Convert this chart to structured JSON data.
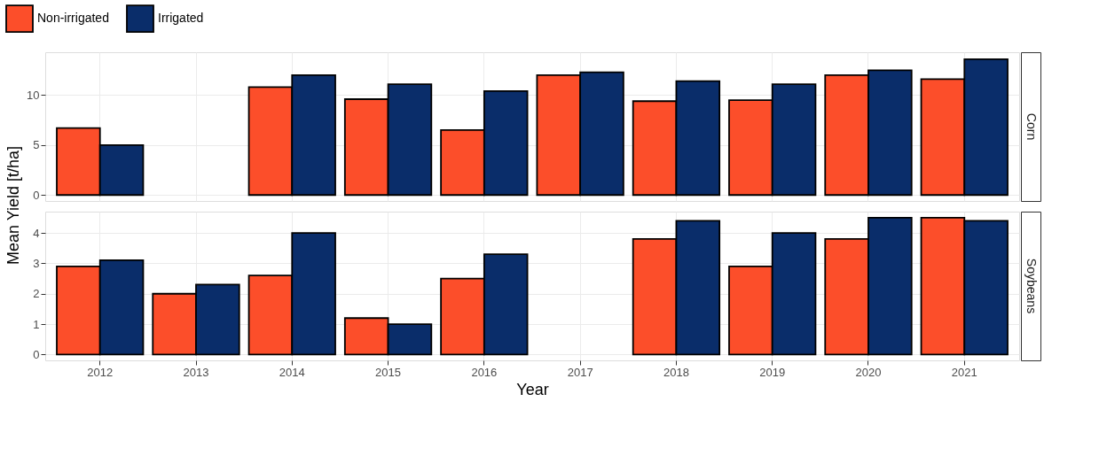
{
  "chart_data": [
    {
      "type": "bar",
      "title": "Corn",
      "ylabel": "Mean Yield [t/ha]",
      "legend": "top",
      "grid": true,
      "tick_labels": "y",
      "categories": [
        "2012",
        "2013",
        "2014",
        "2015",
        "2016",
        "2017",
        "2018",
        "2019",
        "2020",
        "2021"
      ],
      "series": [
        {
          "name": "Non-irrigated",
          "color": "#fc4e2a",
          "values": [
            6.7,
            null,
            10.8,
            9.6,
            6.5,
            12.0,
            9.4,
            9.5,
            12.0,
            11.6
          ]
        },
        {
          "name": "Irrigated",
          "color": "#0a2d6a",
          "values": [
            5.0,
            null,
            12.0,
            11.1,
            10.4,
            12.3,
            11.4,
            11.1,
            12.5,
            13.6
          ]
        }
      ],
      "ylim": [
        -0.6,
        14.3
      ],
      "yticks": [
        0,
        5,
        10
      ]
    },
    {
      "type": "bar",
      "title": "Soybeans",
      "xlabel": "Year",
      "grid": true,
      "categories": [
        "2012",
        "2013",
        "2014",
        "2015",
        "2016",
        "2017",
        "2018",
        "2019",
        "2020",
        "2021"
      ],
      "series": [
        {
          "name": "Non-irrigated",
          "color": "#fc4e2a",
          "values": [
            2.9,
            2.0,
            2.6,
            1.2,
            2.5,
            null,
            3.8,
            2.9,
            3.8,
            4.5
          ]
        },
        {
          "name": "Irrigated",
          "color": "#0a2d6a",
          "values": [
            3.1,
            2.3,
            4.0,
            1.0,
            3.3,
            null,
            4.4,
            4.0,
            4.5,
            4.4
          ]
        }
      ],
      "ylim": [
        -0.19,
        4.7
      ],
      "yticks": [
        0,
        1,
        2,
        3,
        4
      ]
    }
  ]
}
